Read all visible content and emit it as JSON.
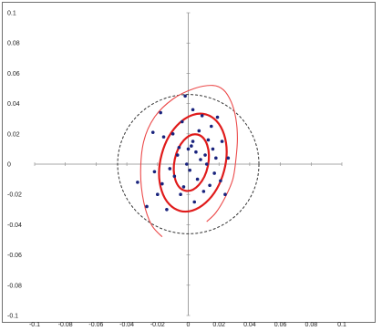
{
  "chart_data": {
    "type": "scatter",
    "title": "",
    "xlabel": "",
    "ylabel": "",
    "xlim": [
      -0.1,
      0.1
    ],
    "ylim": [
      -0.1,
      0.1
    ],
    "grid": false,
    "legend": "none",
    "x_ticks": [
      "-0.1",
      "-0.08",
      "-0.06",
      "-0.04",
      "-0.02",
      "0",
      "0.02",
      "0.04",
      "0.06",
      "0.08",
      "0.1"
    ],
    "y_ticks": [
      "0.1",
      "0.08",
      "0.06",
      "0.04",
      "0.02",
      "0",
      "-0.02",
      "-0.04",
      "-0.06",
      "-0.08",
      "-0.1"
    ],
    "points": [
      [
        -0.033,
        -0.012
      ],
      [
        -0.027,
        -0.028
      ],
      [
        -0.023,
        0.021
      ],
      [
        -0.022,
        -0.005
      ],
      [
        -0.02,
        -0.02
      ],
      [
        -0.018,
        0.034
      ],
      [
        -0.017,
        -0.013
      ],
      [
        -0.016,
        0.018
      ],
      [
        -0.014,
        -0.03
      ],
      [
        -0.012,
        -0.003
      ],
      [
        -0.01,
        0.02
      ],
      [
        -0.009,
        -0.008
      ],
      [
        -0.007,
        0.006
      ],
      [
        -0.006,
        0.011
      ],
      [
        -0.005,
        -0.02
      ],
      [
        -0.004,
        0.028
      ],
      [
        -0.003,
        -0.015
      ],
      [
        -0.002,
        0.045
      ],
      [
        -0.001,
        0.0
      ],
      [
        0.0,
        0.01
      ],
      [
        0.001,
        -0.004
      ],
      [
        0.002,
        0.012
      ],
      [
        0.003,
        0.036
      ],
      [
        0.003,
        0.015
      ],
      [
        0.004,
        -0.025
      ],
      [
        0.005,
        0.008
      ],
      [
        0.006,
        -0.01
      ],
      [
        0.007,
        0.022
      ],
      [
        0.008,
        0.003
      ],
      [
        0.009,
        0.032
      ],
      [
        0.01,
        -0.018
      ],
      [
        0.011,
        0.006
      ],
      [
        0.012,
        0.0
      ],
      [
        0.013,
        0.016
      ],
      [
        0.014,
        -0.014
      ],
      [
        0.015,
        0.025
      ],
      [
        0.016,
        0.01
      ],
      [
        0.017,
        -0.006
      ],
      [
        0.018,
        0.004
      ],
      [
        0.019,
        0.031
      ],
      [
        0.021,
        -0.011
      ],
      [
        0.022,
        0.015
      ],
      [
        0.024,
        -0.02
      ],
      [
        0.026,
        0.004
      ]
    ],
    "curves": {
      "dashed_circle": {
        "cx": 0.0,
        "cy": 0.0,
        "r": 0.046
      },
      "ellipses": [
        {
          "cx": 0.002,
          "cy": 0.001,
          "rx": 0.011,
          "ry": 0.019,
          "rotation_deg": 12
        },
        {
          "cx": 0.003,
          "cy": 0.001,
          "rx": 0.021,
          "ry": 0.033,
          "rotation_deg": 15
        }
      ],
      "spiral_curve": [
        [
          -0.017,
          -0.048
        ],
        [
          -0.024,
          -0.04
        ],
        [
          -0.029,
          -0.025
        ],
        [
          -0.031,
          -0.006
        ],
        [
          -0.029,
          0.015
        ],
        [
          -0.022,
          0.031
        ],
        [
          -0.01,
          0.043
        ],
        [
          0.004,
          0.05
        ],
        [
          0.016,
          0.052
        ],
        [
          0.023,
          0.049
        ],
        [
          0.028,
          0.041
        ],
        [
          0.031,
          0.03
        ],
        [
          0.032,
          0.017
        ],
        [
          0.031,
          0.003
        ],
        [
          0.029,
          -0.01
        ],
        [
          0.024,
          -0.022
        ],
        [
          0.018,
          -0.032
        ],
        [
          0.012,
          -0.038
        ]
      ]
    },
    "colors": {
      "points": "#19237d",
      "ellipses": "#e01b1b",
      "spiral": "#ec4a4a",
      "dashed": "#333333",
      "axes": "#8a8a8a"
    }
  }
}
